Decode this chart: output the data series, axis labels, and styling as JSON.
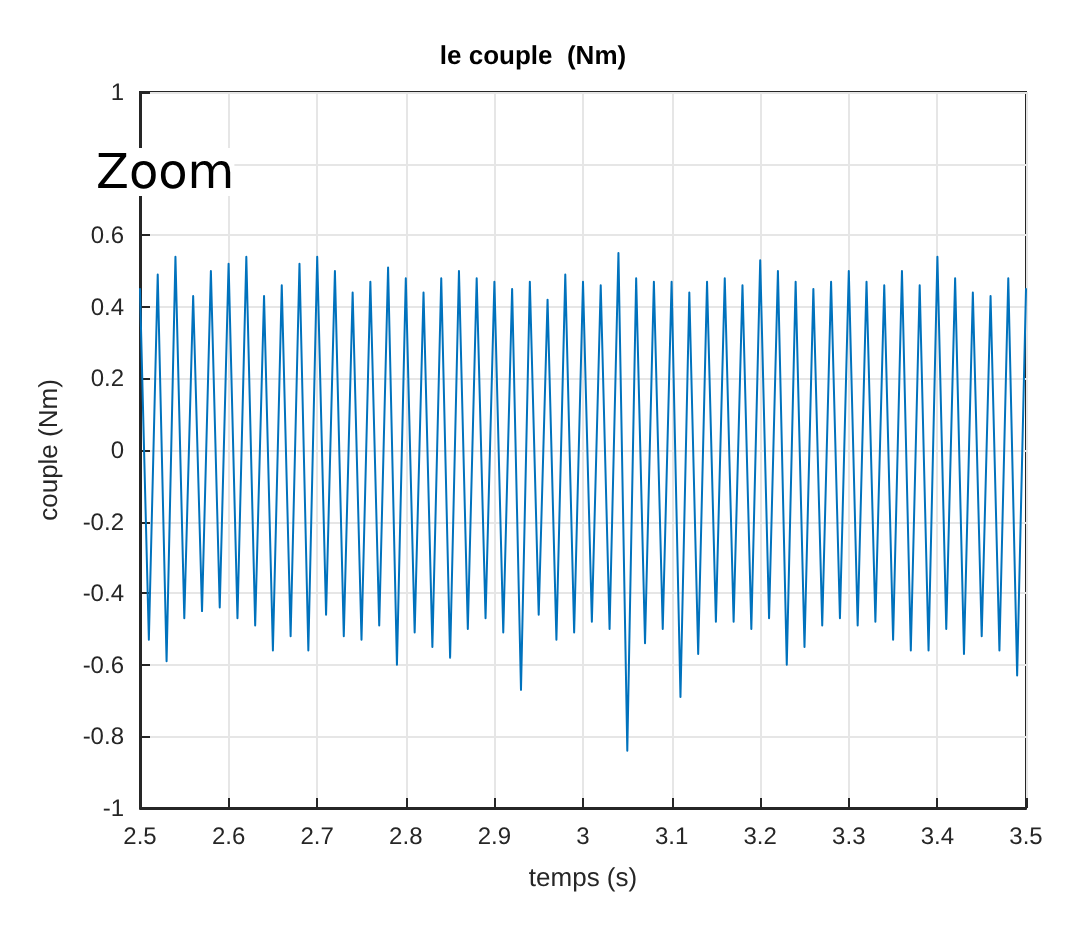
{
  "chart_data": {
    "type": "line",
    "title": "le couple  (Nm)",
    "xlabel": "temps (s)",
    "ylabel": "couple (Nm)",
    "annotations": [
      "Zoom"
    ],
    "x": [
      2.5,
      2.51,
      2.52,
      2.53,
      2.54,
      2.55,
      2.56,
      2.57,
      2.58,
      2.59,
      2.6,
      2.61,
      2.62,
      2.63,
      2.64,
      2.65,
      2.66,
      2.67,
      2.68,
      2.69,
      2.7,
      2.71,
      2.72,
      2.73,
      2.74,
      2.75,
      2.76,
      2.77,
      2.78,
      2.79,
      2.8,
      2.81,
      2.82,
      2.83,
      2.84,
      2.85,
      2.86,
      2.87,
      2.88,
      2.89,
      2.9,
      2.91,
      2.92,
      2.93,
      2.94,
      2.95,
      2.96,
      2.97,
      2.98,
      2.99,
      3,
      3.01,
      3.02,
      3.03,
      3.04,
      3.05,
      3.06,
      3.07,
      3.08,
      3.09,
      3.1,
      3.11,
      3.12,
      3.13,
      3.14,
      3.15,
      3.16,
      3.17,
      3.18,
      3.19,
      3.2,
      3.21,
      3.22,
      3.23,
      3.24,
      3.25,
      3.26,
      3.27,
      3.28,
      3.29,
      3.3,
      3.31,
      3.32,
      3.33,
      3.34,
      3.35,
      3.36,
      3.37,
      3.38,
      3.39,
      3.4,
      3.41,
      3.42,
      3.43,
      3.44,
      3.45,
      3.46,
      3.47,
      3.48,
      3.49,
      3.5
    ],
    "series": [
      {
        "color": "#0072bd",
        "values": [
          0.45,
          -0.53,
          0.49,
          -0.59,
          0.54,
          -0.47,
          0.43,
          -0.45,
          0.5,
          -0.44,
          0.52,
          -0.47,
          0.54,
          -0.49,
          0.43,
          -0.56,
          0.46,
          -0.52,
          0.52,
          -0.56,
          0.54,
          -0.46,
          0.5,
          -0.52,
          0.44,
          -0.53,
          0.47,
          -0.49,
          0.51,
          -0.6,
          0.48,
          -0.51,
          0.44,
          -0.55,
          0.48,
          -0.58,
          0.5,
          -0.5,
          0.48,
          -0.47,
          0.47,
          -0.51,
          0.45,
          -0.67,
          0.47,
          -0.46,
          0.42,
          -0.53,
          0.49,
          -0.51,
          0.47,
          -0.48,
          0.46,
          -0.5,
          0.55,
          -0.84,
          0.48,
          -0.54,
          0.47,
          -0.5,
          0.47,
          -0.69,
          0.44,
          -0.57,
          0.47,
          -0.48,
          0.48,
          -0.48,
          0.46,
          -0.5,
          0.53,
          -0.47,
          0.5,
          -0.6,
          0.47,
          -0.55,
          0.45,
          -0.49,
          0.47,
          -0.47,
          0.5,
          -0.49,
          0.47,
          -0.48,
          0.46,
          -0.53,
          0.5,
          -0.56,
          0.46,
          -0.56,
          0.54,
          -0.5,
          0.48,
          -0.57,
          0.44,
          -0.52,
          0.43,
          -0.56,
          0.48,
          -0.63,
          0.45
        ]
      }
    ],
    "xlim": [
      2.5,
      3.5
    ],
    "xticks": [
      2.5,
      2.6,
      2.7,
      2.8,
      2.9,
      3,
      3.1,
      3.2,
      3.3,
      3.4,
      3.5
    ],
    "ylim": [
      -1,
      1
    ],
    "yticks": [
      -1,
      -0.8,
      -0.6,
      -0.4,
      -0.2,
      0,
      0.2,
      0.4,
      0.6,
      {
        "value": 0.8,
        "label": null
      },
      1
    ],
    "grid": true,
    "marker": "none",
    "line_style": "solid"
  }
}
